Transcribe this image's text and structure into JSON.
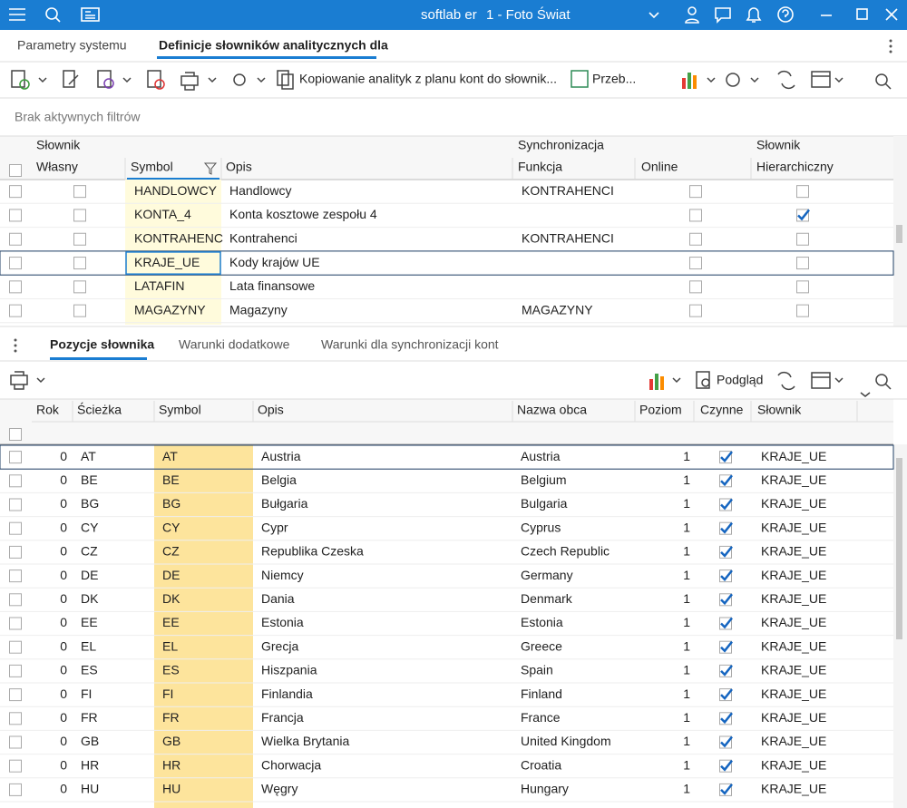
{
  "titlebar": {
    "app": "softlab er",
    "company": "1 - Foto Świat"
  },
  "tabs": [
    "Parametry systemu",
    "Definicje słowników analitycznych dla"
  ],
  "toolbar": {
    "copy": "Kopiowanie analityk z  planu kont do słownik...",
    "przeb": "Przeb..."
  },
  "filter": "Brak aktywnych filtrów",
  "top_table": {
    "groups": [
      "Słownik",
      "Synchronizacja",
      "Słownik"
    ],
    "columns": [
      "Własny",
      "Symbol",
      "Opis",
      "Funkcja",
      "Online",
      "Hierarchiczny"
    ],
    "selected_row": 3,
    "rows": [
      {
        "symbol": "HANDLOWCY",
        "opis": "Handlowcy",
        "funkcja": "KONTRAHENCI",
        "hierarchiczny": false
      },
      {
        "symbol": "KONTA_4",
        "opis": "Konta kosztowe zespołu 4",
        "funkcja": null,
        "hierarchiczny": true
      },
      {
        "symbol": "KONTRAHENC",
        "opis": "Kontrahenci",
        "funkcja": "KONTRAHENCI",
        "hierarchiczny": false
      },
      {
        "symbol": "KRAJE_UE",
        "opis": "Kody krajów UE",
        "funkcja": null,
        "hierarchiczny": false
      },
      {
        "symbol": "LATAFIN",
        "opis": "Lata finansowe",
        "funkcja": null,
        "hierarchiczny": false
      },
      {
        "symbol": "MAGAZYNY",
        "opis": "Magazyny",
        "funkcja": "MAGAZYNY",
        "hierarchiczny": false
      }
    ]
  },
  "bottom_tabs": [
    "Pozycje słownika",
    "Warunki dodatkowe",
    "Warunki dla synchronizacji kont"
  ],
  "bottom_toolbar": {
    "preview": "Podgląd"
  },
  "bottom_table": {
    "columns": [
      "Rok",
      "Ścieżka",
      "Symbol",
      "Opis",
      "Nazwa obca",
      "Poziom",
      "Czynne",
      "Słownik"
    ],
    "selected_row": 0,
    "rows": [
      {
        "rok": 0,
        "sciezka": "AT",
        "symbol": "AT",
        "opis": "Austria",
        "nazwa_obca": "Austria",
        "poziom": 1,
        "czynne": true,
        "slownik": "KRAJE_UE"
      },
      {
        "rok": 0,
        "sciezka": "BE",
        "symbol": "BE",
        "opis": "Belgia",
        "nazwa_obca": "Belgium",
        "poziom": 1,
        "czynne": true,
        "slownik": "KRAJE_UE"
      },
      {
        "rok": 0,
        "sciezka": "BG",
        "symbol": "BG",
        "opis": "Bułgaria",
        "nazwa_obca": "Bulgaria",
        "poziom": 1,
        "czynne": true,
        "slownik": "KRAJE_UE"
      },
      {
        "rok": 0,
        "sciezka": "CY",
        "symbol": "CY",
        "opis": "Cypr",
        "nazwa_obca": "Cyprus",
        "poziom": 1,
        "czynne": true,
        "slownik": "KRAJE_UE"
      },
      {
        "rok": 0,
        "sciezka": "CZ",
        "symbol": "CZ",
        "opis": "Republika Czeska",
        "nazwa_obca": "Czech Republic",
        "poziom": 1,
        "czynne": true,
        "slownik": "KRAJE_UE"
      },
      {
        "rok": 0,
        "sciezka": "DE",
        "symbol": "DE",
        "opis": "Niemcy",
        "nazwa_obca": "Germany",
        "poziom": 1,
        "czynne": true,
        "slownik": "KRAJE_UE"
      },
      {
        "rok": 0,
        "sciezka": "DK",
        "symbol": "DK",
        "opis": "Dania",
        "nazwa_obca": "Denmark",
        "poziom": 1,
        "czynne": true,
        "slownik": "KRAJE_UE"
      },
      {
        "rok": 0,
        "sciezka": "EE",
        "symbol": "EE",
        "opis": "Estonia",
        "nazwa_obca": "Estonia",
        "poziom": 1,
        "czynne": true,
        "slownik": "KRAJE_UE"
      },
      {
        "rok": 0,
        "sciezka": "EL",
        "symbol": "EL",
        "opis": "Grecja",
        "nazwa_obca": "Greece",
        "poziom": 1,
        "czynne": true,
        "slownik": "KRAJE_UE"
      },
      {
        "rok": 0,
        "sciezka": "ES",
        "symbol": "ES",
        "opis": "Hiszpania",
        "nazwa_obca": "Spain",
        "poziom": 1,
        "czynne": true,
        "slownik": "KRAJE_UE"
      },
      {
        "rok": 0,
        "sciezka": "FI",
        "symbol": "FI",
        "opis": "Finlandia",
        "nazwa_obca": "Finland",
        "poziom": 1,
        "czynne": true,
        "slownik": "KRAJE_UE"
      },
      {
        "rok": 0,
        "sciezka": "FR",
        "symbol": "FR",
        "opis": "Francja",
        "nazwa_obca": "France",
        "poziom": 1,
        "czynne": true,
        "slownik": "KRAJE_UE"
      },
      {
        "rok": 0,
        "sciezka": "GB",
        "symbol": "GB",
        "opis": "Wielka Brytania",
        "nazwa_obca": "United Kingdom",
        "poziom": 1,
        "czynne": true,
        "slownik": "KRAJE_UE"
      },
      {
        "rok": 0,
        "sciezka": "HR",
        "symbol": "HR",
        "opis": "Chorwacja",
        "nazwa_obca": "Croatia",
        "poziom": 1,
        "czynne": true,
        "slownik": "KRAJE_UE"
      },
      {
        "rok": 0,
        "sciezka": "HU",
        "symbol": "HU",
        "opis": "Węgry",
        "nazwa_obca": "Hungary",
        "poziom": 1,
        "czynne": true,
        "slownik": "KRAJE_UE"
      }
    ]
  }
}
